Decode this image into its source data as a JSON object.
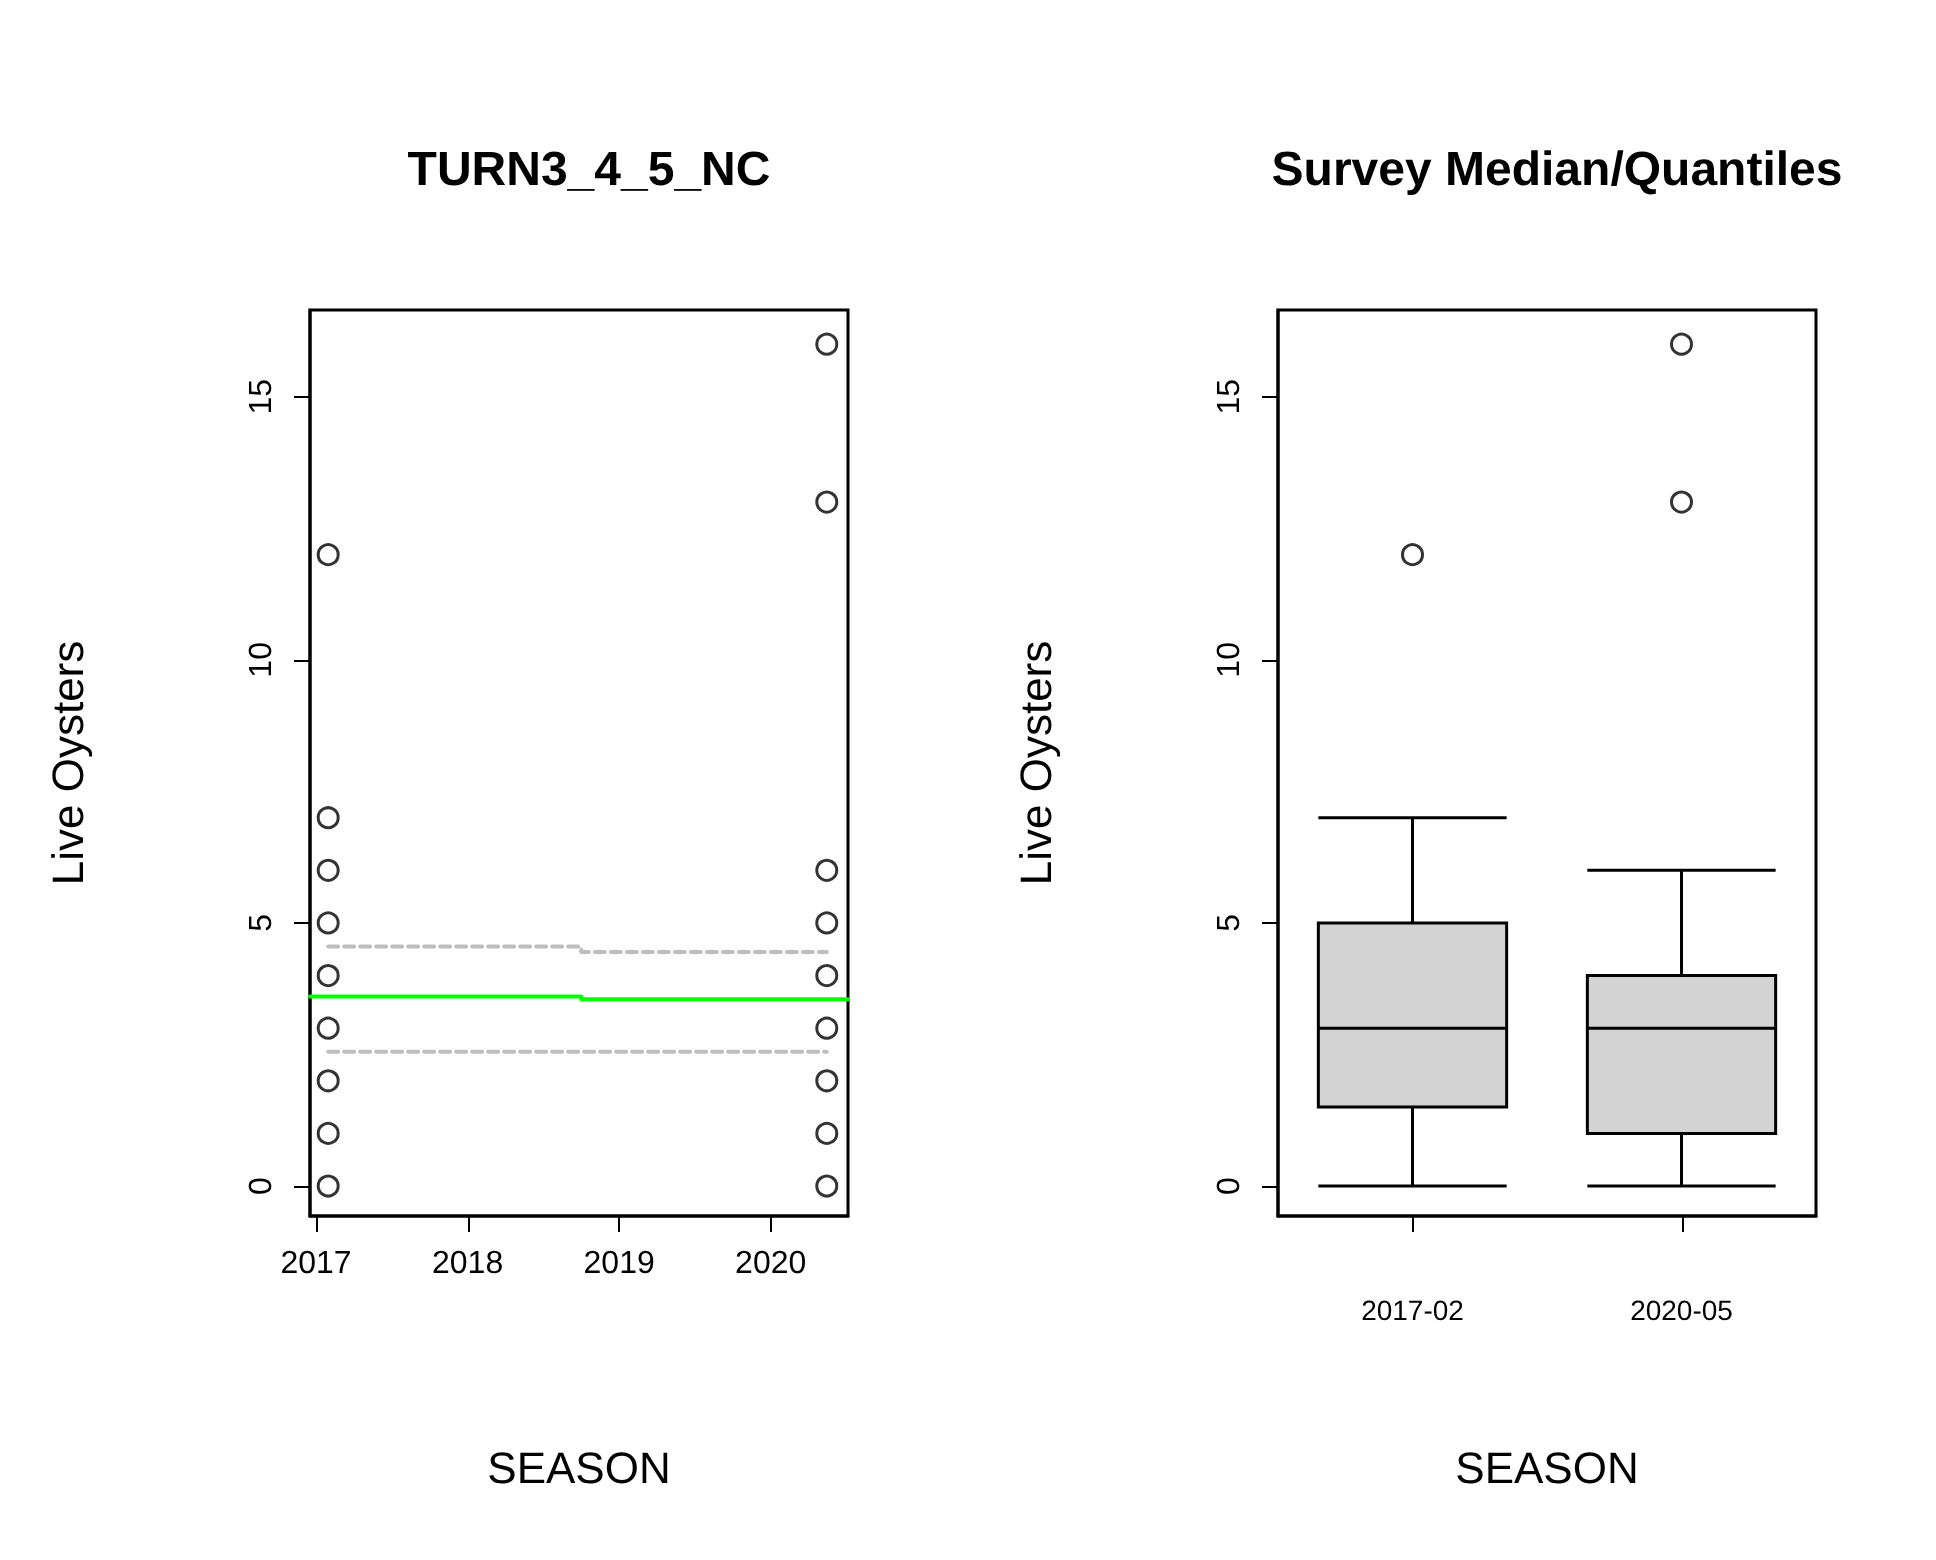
{
  "chart_data": [
    {
      "type": "scatter",
      "title": "TURN3_4_5_NC",
      "xlabel": "SEASON",
      "ylabel": "Live Oysters",
      "marker": "circle",
      "xlim": [
        2016.96,
        2020.51
      ],
      "xticks": [
        2017,
        2018,
        2019,
        2020
      ],
      "ylim": [
        -0.57,
        16.65
      ],
      "yticks": [
        0,
        5,
        10,
        15
      ],
      "series": [
        {
          "type": "scatter",
          "color": "#000000",
          "x": [
            2017.08,
            2017.08,
            2017.08,
            2017.08,
            2017.08,
            2017.08,
            2017.08,
            2017.08,
            2017.08,
            2020.37,
            2020.37,
            2020.37,
            2020.37,
            2020.37,
            2020.37,
            2020.37,
            2020.37,
            2020.37
          ],
          "values": [
            0,
            1,
            2,
            3,
            4,
            5,
            6,
            7,
            12,
            0,
            1,
            2,
            3,
            4,
            5,
            6,
            13,
            16
          ]
        },
        {
          "type": "line",
          "color": "#00ff00",
          "marker": "none",
          "line_style": "solid",
          "x": [
            2016.96,
            2018.75,
            2018.75,
            2020.51
          ],
          "values": [
            3.6,
            3.6,
            3.55,
            3.55
          ]
        },
        {
          "type": "line",
          "color": "#bebebe",
          "marker": "none",
          "line_style": "dashed",
          "x": [
            2017.08,
            2018.75,
            2018.75,
            2020.37
          ],
          "values": [
            4.55,
            4.55,
            4.45,
            4.45
          ]
        },
        {
          "type": "line",
          "color": "#bebebe",
          "marker": "none",
          "line_style": "dashed",
          "x": [
            2017.08,
            2020.37
          ],
          "values": [
            2.55,
            2.55
          ]
        }
      ]
    },
    {
      "type": "box",
      "title": "Survey Median/Quantiles",
      "xlabel": "SEASON",
      "ylabel": "Live Oysters",
      "color": "#d3d3d3",
      "categories": [
        "2017-02",
        "2020-05"
      ],
      "ylim": [
        -0.57,
        16.65
      ],
      "yticks": [
        0,
        5,
        10,
        15
      ],
      "boxes": [
        {
          "low": 0,
          "q1": 1.5,
          "median": 3,
          "q3": 5,
          "high": 7,
          "outliers": [
            12
          ]
        },
        {
          "low": 0,
          "q1": 1,
          "median": 3,
          "q3": 4,
          "high": 6,
          "outliers": [
            13,
            16
          ]
        }
      ]
    }
  ]
}
